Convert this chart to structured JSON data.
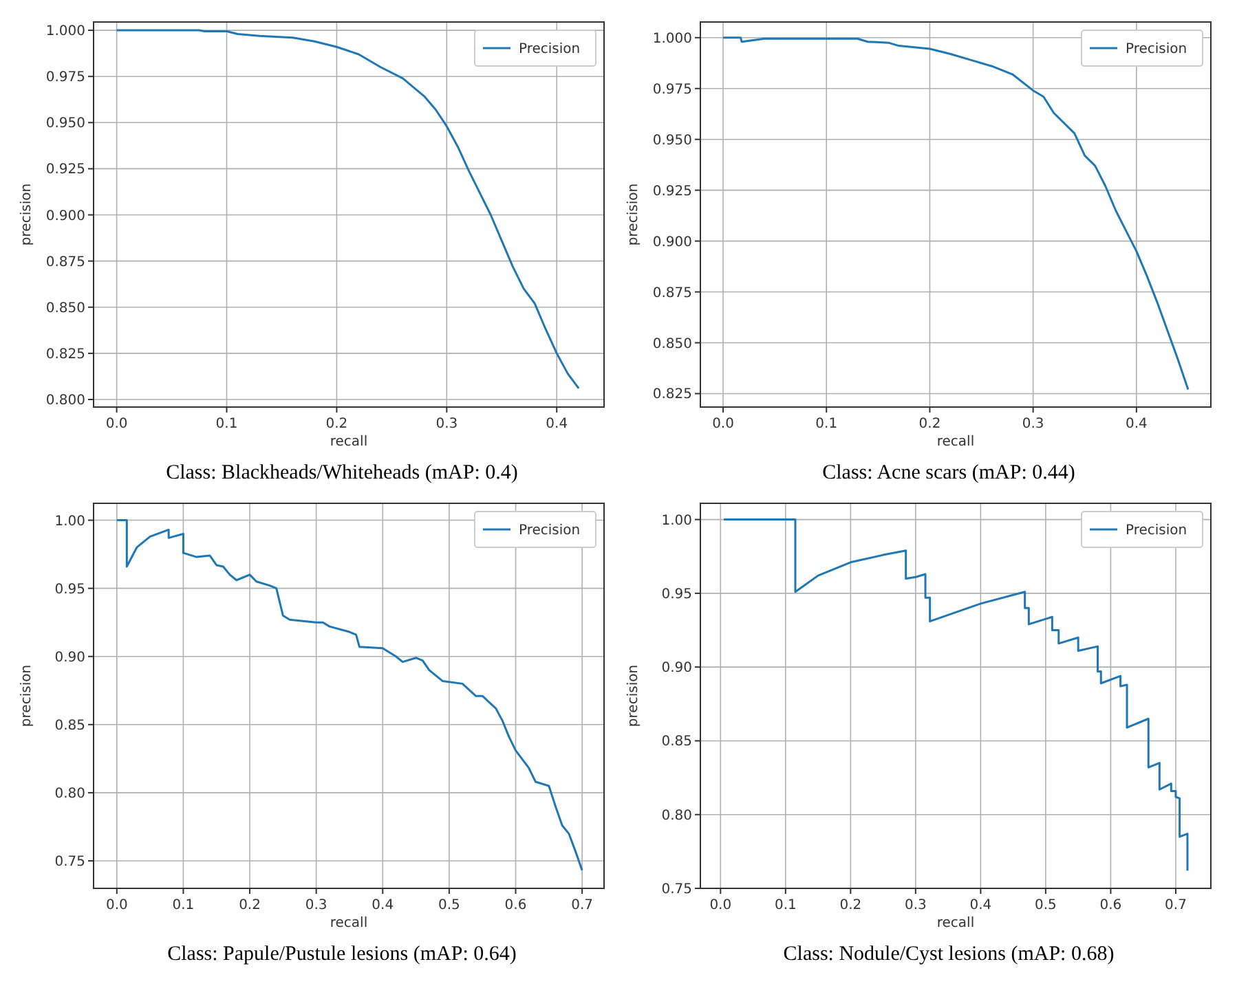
{
  "chart_data": [
    {
      "type": "line",
      "title": "Class: Blackheads/Whiteheads (mAP: 0.4)",
      "xlabel": "recall",
      "ylabel": "precision",
      "legend": "top right",
      "grid": true,
      "xlim": [
        -0.021,
        0.443
      ],
      "ylim": [
        0.7959,
        1.0045
      ],
      "xticks": [
        {
          "value": 0,
          "label": "0.0"
        },
        {
          "value": 0.1,
          "label": "0.1"
        },
        {
          "value": 0.2,
          "label": "0.2"
        },
        {
          "value": 0.3,
          "label": "0.3"
        },
        {
          "value": 0.4,
          "label": "0.4"
        }
      ],
      "yticks": [
        {
          "value": 0.8,
          "label": "0.800"
        },
        {
          "value": 0.825,
          "label": "0.825"
        },
        {
          "value": 0.85,
          "label": "0.850"
        },
        {
          "value": 0.875,
          "label": "0.875"
        },
        {
          "value": 0.9,
          "label": "0.900"
        },
        {
          "value": 0.925,
          "label": "0.925"
        },
        {
          "value": 0.95,
          "label": "0.950"
        },
        {
          "value": 0.975,
          "label": "0.975"
        },
        {
          "value": 1,
          "label": "1.000"
        }
      ],
      "series": [
        {
          "name": "Precision",
          "color": "#1f77b4",
          "x": [
            0,
            0.075,
            0.08,
            0.1,
            0.11,
            0.13,
            0.16,
            0.18,
            0.2,
            0.22,
            0.24,
            0.26,
            0.28,
            0.29,
            0.3,
            0.31,
            0.32,
            0.33,
            0.34,
            0.35,
            0.36,
            0.37,
            0.38,
            0.39,
            0.4,
            0.41,
            0.42
          ],
          "values": [
            1,
            1,
            0.9995,
            0.9995,
            0.998,
            0.997,
            0.996,
            0.994,
            0.991,
            0.987,
            0.98,
            0.974,
            0.964,
            0.957,
            0.948,
            0.937,
            0.924,
            0.912,
            0.9,
            0.886,
            0.872,
            0.86,
            0.852,
            0.838,
            0.825,
            0.814,
            0.806
          ]
        }
      ]
    },
    {
      "type": "line",
      "title": "Class: Acne scars (mAP: 0.44)",
      "xlabel": "recall",
      "ylabel": "precision",
      "legend": "top right",
      "grid": true,
      "xlim": [
        -0.022,
        0.472
      ],
      "ylim": [
        0.8184,
        1.0077
      ],
      "xticks": [
        {
          "value": 0,
          "label": "0.0"
        },
        {
          "value": 0.1,
          "label": "0.1"
        },
        {
          "value": 0.2,
          "label": "0.2"
        },
        {
          "value": 0.3,
          "label": "0.3"
        },
        {
          "value": 0.4,
          "label": "0.4"
        }
      ],
      "yticks": [
        {
          "value": 0.825,
          "label": "0.825"
        },
        {
          "value": 0.85,
          "label": "0.850"
        },
        {
          "value": 0.875,
          "label": "0.875"
        },
        {
          "value": 0.9,
          "label": "0.900"
        },
        {
          "value": 0.925,
          "label": "0.925"
        },
        {
          "value": 0.95,
          "label": "0.950"
        },
        {
          "value": 0.975,
          "label": "0.975"
        },
        {
          "value": 1,
          "label": "1.000"
        }
      ],
      "series": [
        {
          "name": "Precision",
          "color": "#1f77b4",
          "x": [
            0,
            0.017,
            0.018,
            0.04,
            0.13,
            0.14,
            0.16,
            0.17,
            0.2,
            0.22,
            0.24,
            0.26,
            0.28,
            0.3,
            0.31,
            0.32,
            0.34,
            0.35,
            0.36,
            0.37,
            0.38,
            0.39,
            0.4,
            0.41,
            0.42,
            0.43,
            0.44,
            0.45
          ],
          "values": [
            1,
            1,
            0.998,
            0.9995,
            0.9995,
            0.998,
            0.9975,
            0.996,
            0.9945,
            0.992,
            0.989,
            0.986,
            0.982,
            0.974,
            0.971,
            0.963,
            0.953,
            0.942,
            0.937,
            0.927,
            0.915,
            0.905,
            0.895,
            0.883,
            0.87,
            0.856,
            0.842,
            0.827
          ]
        }
      ]
    },
    {
      "type": "line",
      "title": "Class: Papule/Pustule lesions (mAP: 0.64)",
      "xlabel": "recall",
      "ylabel": "precision",
      "legend": "top right",
      "grid": true,
      "xlim": [
        -0.035,
        0.733
      ],
      "ylim": [
        0.7298,
        1.0124
      ],
      "xticks": [
        {
          "value": 0,
          "label": "0.0"
        },
        {
          "value": 0.1,
          "label": "0.1"
        },
        {
          "value": 0.2,
          "label": "0.2"
        },
        {
          "value": 0.3,
          "label": "0.3"
        },
        {
          "value": 0.4,
          "label": "0.4"
        },
        {
          "value": 0.5,
          "label": "0.5"
        },
        {
          "value": 0.6,
          "label": "0.6"
        },
        {
          "value": 0.7,
          "label": "0.7"
        }
      ],
      "yticks": [
        {
          "value": 0.75,
          "label": "0.75"
        },
        {
          "value": 0.8,
          "label": "0.80"
        },
        {
          "value": 0.85,
          "label": "0.85"
        },
        {
          "value": 0.9,
          "label": "0.90"
        },
        {
          "value": 0.95,
          "label": "0.95"
        },
        {
          "value": 1,
          "label": "1.00"
        }
      ],
      "series": [
        {
          "name": "Precision",
          "color": "#1f77b4",
          "x": [
            0,
            0.015,
            0.015,
            0.03,
            0.05,
            0.078,
            0.078,
            0.1,
            0.1,
            0.12,
            0.14,
            0.15,
            0.16,
            0.17,
            0.18,
            0.2,
            0.21,
            0.23,
            0.24,
            0.245,
            0.25,
            0.26,
            0.3,
            0.31,
            0.32,
            0.35,
            0.36,
            0.365,
            0.4,
            0.42,
            0.43,
            0.45,
            0.46,
            0.47,
            0.49,
            0.52,
            0.54,
            0.55,
            0.57,
            0.58,
            0.59,
            0.6,
            0.62,
            0.63,
            0.65,
            0.66,
            0.67,
            0.68,
            0.69,
            0.7
          ],
          "values": [
            1,
            1,
            0.966,
            0.98,
            0.988,
            0.993,
            0.987,
            0.99,
            0.976,
            0.973,
            0.974,
            0.967,
            0.966,
            0.96,
            0.956,
            0.96,
            0.955,
            0.952,
            0.95,
            0.94,
            0.93,
            0.927,
            0.925,
            0.925,
            0.922,
            0.918,
            0.916,
            0.907,
            0.906,
            0.9,
            0.896,
            0.899,
            0.897,
            0.89,
            0.882,
            0.88,
            0.871,
            0.871,
            0.862,
            0.853,
            0.841,
            0.831,
            0.818,
            0.808,
            0.805,
            0.79,
            0.776,
            0.77,
            0.757,
            0.743
          ]
        }
      ]
    },
    {
      "type": "line",
      "title": "Class: Nodule/Cyst lesions (mAP: 0.68)",
      "xlabel": "recall",
      "ylabel": "precision",
      "legend": "top right",
      "grid": true,
      "xlim": [
        -0.031,
        0.754
      ],
      "ylim": [
        0.75,
        1.011
      ],
      "xticks": [
        {
          "value": 0,
          "label": "0.0"
        },
        {
          "value": 0.1,
          "label": "0.1"
        },
        {
          "value": 0.2,
          "label": "0.2"
        },
        {
          "value": 0.3,
          "label": "0.3"
        },
        {
          "value": 0.4,
          "label": "0.4"
        },
        {
          "value": 0.5,
          "label": "0.5"
        },
        {
          "value": 0.6,
          "label": "0.6"
        },
        {
          "value": 0.7,
          "label": "0.7"
        }
      ],
      "yticks": [
        {
          "value": 0.75,
          "label": "0.75"
        },
        {
          "value": 0.8,
          "label": "0.80"
        },
        {
          "value": 0.85,
          "label": "0.85"
        },
        {
          "value": 0.9,
          "label": "0.90"
        },
        {
          "value": 0.95,
          "label": "0.95"
        },
        {
          "value": 1,
          "label": "1.00"
        }
      ],
      "series": [
        {
          "name": "Precision",
          "color": "#1f77b4",
          "x": [
            0.005,
            0.115,
            0.115,
            0.15,
            0.2,
            0.25,
            0.285,
            0.285,
            0.3,
            0.315,
            0.315,
            0.322,
            0.322,
            0.4,
            0.468,
            0.468,
            0.474,
            0.474,
            0.51,
            0.51,
            0.52,
            0.52,
            0.55,
            0.55,
            0.58,
            0.58,
            0.585,
            0.585,
            0.615,
            0.615,
            0.625,
            0.625,
            0.658,
            0.658,
            0.675,
            0.675,
            0.693,
            0.693,
            0.7,
            0.7,
            0.706,
            0.706,
            0.718,
            0.718
          ],
          "values": [
            1,
            1,
            0.951,
            0.962,
            0.971,
            0.976,
            0.979,
            0.96,
            0.961,
            0.963,
            0.947,
            0.947,
            0.931,
            0.943,
            0.951,
            0.94,
            0.94,
            0.929,
            0.934,
            0.925,
            0.925,
            0.916,
            0.92,
            0.911,
            0.914,
            0.897,
            0.897,
            0.889,
            0.894,
            0.887,
            0.888,
            0.859,
            0.865,
            0.832,
            0.835,
            0.817,
            0.821,
            0.816,
            0.816,
            0.812,
            0.811,
            0.785,
            0.787,
            0.762
          ]
        }
      ]
    }
  ]
}
